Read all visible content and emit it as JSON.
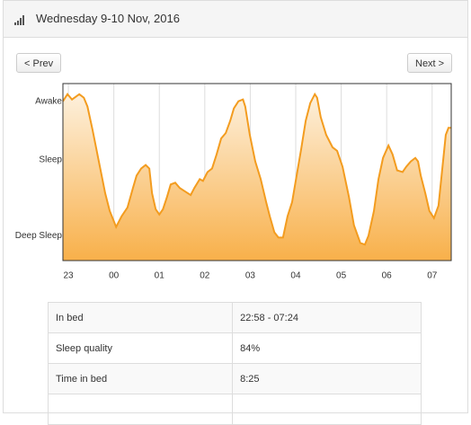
{
  "header": {
    "title": "Wednesday 9-10 Nov, 2016"
  },
  "buttons": {
    "prev": "< Prev",
    "next": "Next >"
  },
  "chart_data": {
    "type": "area",
    "color": "#f39c1f",
    "grid": true,
    "x": [
      22.88,
      22.98,
      23.08,
      23.24,
      23.34,
      23.42,
      23.53,
      23.67,
      23.81,
      23.91,
      24.05,
      24.17,
      24.3,
      24.42,
      24.5,
      24.6,
      24.7,
      24.78,
      24.84,
      24.92,
      25.0,
      25.08,
      25.17,
      25.25,
      25.35,
      25.45,
      25.57,
      25.69,
      25.77,
      25.89,
      25.96,
      26.06,
      26.16,
      26.26,
      26.36,
      26.46,
      26.56,
      26.64,
      26.74,
      26.84,
      26.89,
      26.99,
      27.11,
      27.23,
      27.35,
      27.43,
      27.53,
      27.62,
      27.72,
      27.82,
      27.92,
      28.02,
      28.12,
      28.22,
      28.32,
      28.42,
      28.47,
      28.55,
      28.67,
      28.81,
      28.91,
      29.03,
      29.17,
      29.28,
      29.42,
      29.52,
      29.6,
      29.72,
      29.82,
      29.92,
      30.04,
      30.13,
      30.23,
      30.35,
      30.43,
      30.53,
      30.63,
      30.69,
      30.75,
      30.85,
      30.94,
      31.04,
      31.14,
      31.22,
      31.3,
      31.36,
      31.42
    ],
    "values": [
      90,
      94,
      91,
      94,
      92,
      87,
      74,
      56,
      38,
      28,
      19,
      25,
      30,
      41,
      48,
      52,
      54,
      52,
      38,
      29,
      26,
      29,
      36,
      43,
      44,
      41,
      39,
      37,
      41,
      46,
      45,
      50,
      52,
      60,
      69,
      72,
      79,
      86,
      90,
      91,
      87,
      71,
      56,
      46,
      33,
      25,
      16,
      13,
      13,
      25,
      33,
      48,
      63,
      79,
      89,
      94,
      92,
      81,
      71,
      64,
      62,
      53,
      36,
      20,
      10,
      9,
      14,
      28,
      46,
      58,
      65,
      60,
      51,
      50,
      53,
      56,
      58,
      56,
      48,
      38,
      28,
      24,
      31,
      51,
      71,
      75,
      75
    ],
    "xlim": [
      22.88,
      31.42
    ],
    "xticks": [
      23,
      {
        "value": 24,
        "label": "00"
      },
      {
        "value": 25,
        "label": "01"
      },
      {
        "value": 26,
        "label": "02"
      },
      {
        "value": 27,
        "label": "03"
      },
      {
        "value": 28,
        "label": "04"
      },
      {
        "value": 29,
        "label": "05"
      },
      {
        "value": 30,
        "label": "06"
      },
      {
        "value": 31,
        "label": "07"
      }
    ],
    "ylim": [
      0,
      100
    ],
    "yticks": [
      {
        "value": 90,
        "label": "Awake"
      },
      {
        "value": 57,
        "label": "Sleep"
      },
      {
        "value": 14,
        "label": "Deep Sleep"
      }
    ]
  },
  "table": {
    "rows": [
      [
        "In bed",
        "22:58 - 07:24"
      ],
      [
        "Sleep quality",
        "84%"
      ],
      [
        "Time in bed",
        "8:25"
      ]
    ]
  }
}
